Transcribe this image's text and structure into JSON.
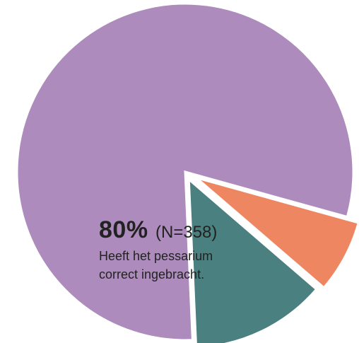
{
  "chart_data": {
    "type": "pie",
    "title": "",
    "slices": [
      {
        "value": 80,
        "color": "#ad8bbd",
        "label": "80%",
        "n": "(N=358)",
        "description_lines": [
          "Heeft het pessarium",
          "correct ingebracht."
        ]
      },
      {
        "value": 13,
        "color": "#4a8080"
      },
      {
        "value": 7,
        "color": "#ee8662"
      }
    ]
  }
}
